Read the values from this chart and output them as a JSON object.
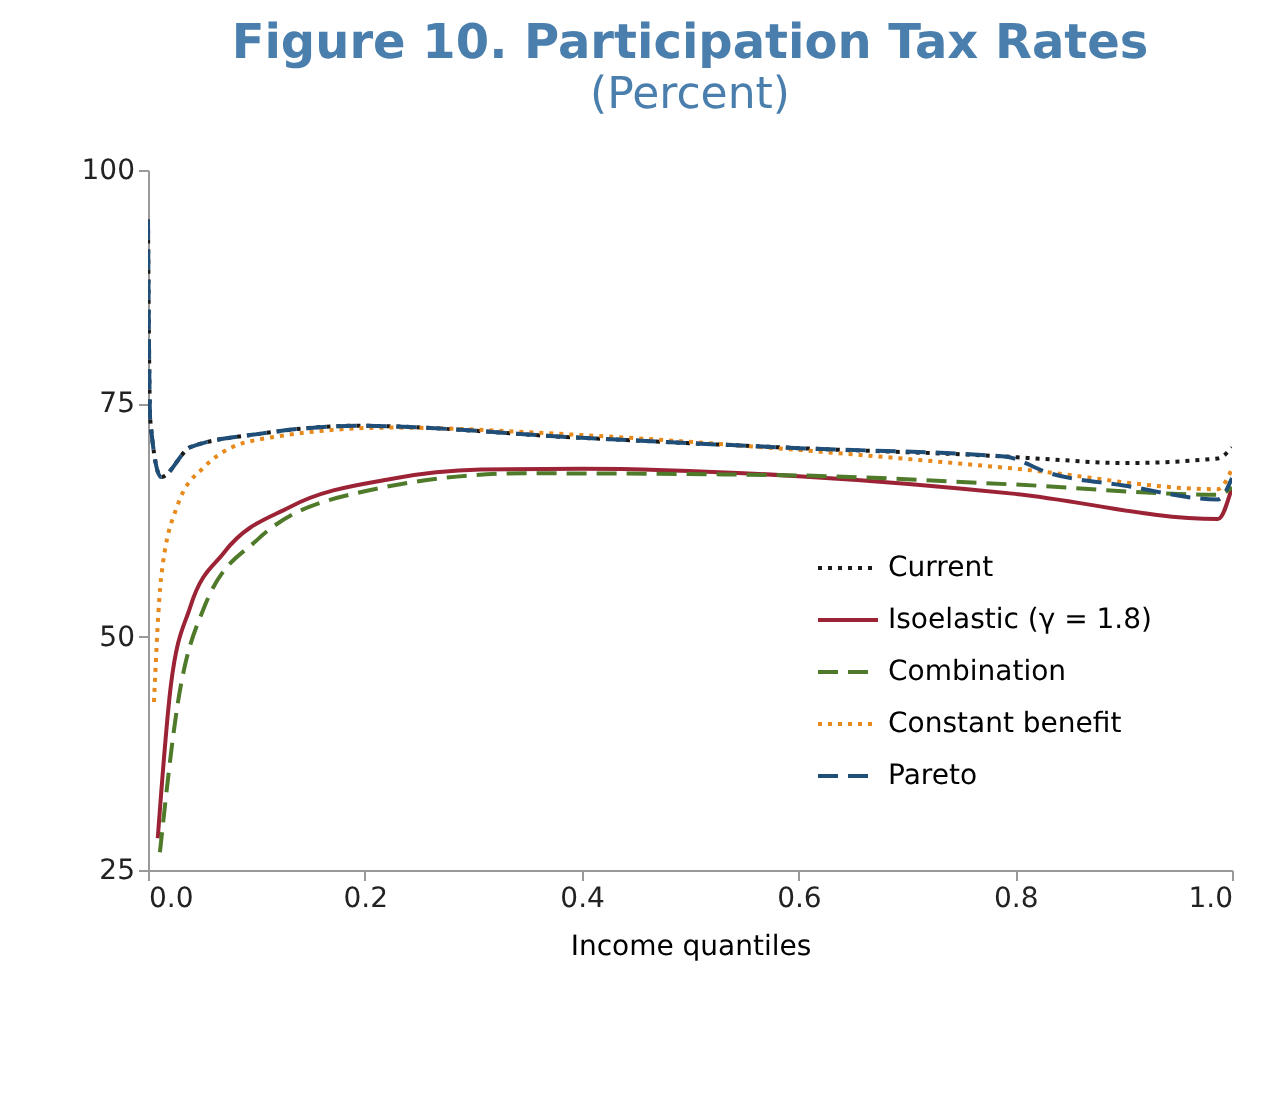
{
  "chart_data": {
    "type": "line",
    "title": "Figure 10. Participation Tax Rates",
    "subtitle": "(Percent)",
    "xlabel": "Income quantiles",
    "xlim": [
      0,
      1
    ],
    "xticks": [
      {
        "value": 0,
        "label": "0.0"
      },
      0.2,
      0.4,
      0.6,
      0.8,
      {
        "value": 1,
        "label": "1.0"
      }
    ],
    "ylim": [
      25,
      100
    ],
    "yticks": [
      25,
      50,
      75,
      100
    ],
    "grid": false,
    "legend": "bottom right",
    "series": [
      {
        "name": "Current",
        "color": "#1a1a1a",
        "line_style": "dotted",
        "x": [
          0,
          0.002,
          0.012,
          0.039,
          0.101,
          0.193,
          0.4,
          0.6,
          0.79,
          0.832,
          0.9,
          0.987,
          1.0
        ],
        "values": [
          94.7,
          73.3,
          67.1,
          70.3,
          71.7,
          72.6,
          71.3,
          70.2,
          69.3,
          69.0,
          68.6,
          69.1,
          70.3
        ]
      },
      {
        "name": "Isoelastic (γ = 1.8)",
        "color": "#9b2335",
        "line_style": "solid",
        "x": [
          0.009,
          0.021,
          0.039,
          0.07,
          0.131,
          0.224,
          0.307,
          0.4,
          0.6,
          0.8,
          0.987,
          1.0
        ],
        "values": [
          28.4,
          44.7,
          53.2,
          59.0,
          63.9,
          66.9,
          67.9,
          68.0,
          67.2,
          65.3,
          62.6,
          66.0
        ]
      },
      {
        "name": "Combination",
        "color": "#4e7a2a",
        "line_style": "dashed",
        "x": [
          0.011,
          0.027,
          0.052,
          0.101,
          0.193,
          0.347,
          0.587,
          0.8,
          0.987,
          1.0
        ],
        "values": [
          26.9,
          42.5,
          53.2,
          60.4,
          65.4,
          67.5,
          67.3,
          66.3,
          65.2,
          66.0
        ]
      },
      {
        "name": "Constant benefit",
        "color": "#e8891c",
        "line_style": "dotted",
        "x": [
          0.0055,
          0.012,
          0.027,
          0.052,
          0.101,
          0.224,
          0.4,
          0.6,
          0.8,
          0.987,
          1.0
        ],
        "values": [
          43.0,
          56.2,
          64.0,
          68.2,
          71.1,
          72.4,
          71.6,
          70.0,
          68.0,
          65.8,
          68.0
        ]
      },
      {
        "name": "Pareto",
        "color": "#1f4e79",
        "line_style": "dashed",
        "x": [
          0,
          0.002,
          0.012,
          0.039,
          0.101,
          0.193,
          0.4,
          0.6,
          0.79,
          0.832,
          0.9,
          0.987,
          1.0
        ],
        "values": [
          94.7,
          73.3,
          67.1,
          70.3,
          71.7,
          72.6,
          71.3,
          70.2,
          69.3,
          67.5,
          66.2,
          64.7,
          67.0
        ]
      }
    ]
  }
}
